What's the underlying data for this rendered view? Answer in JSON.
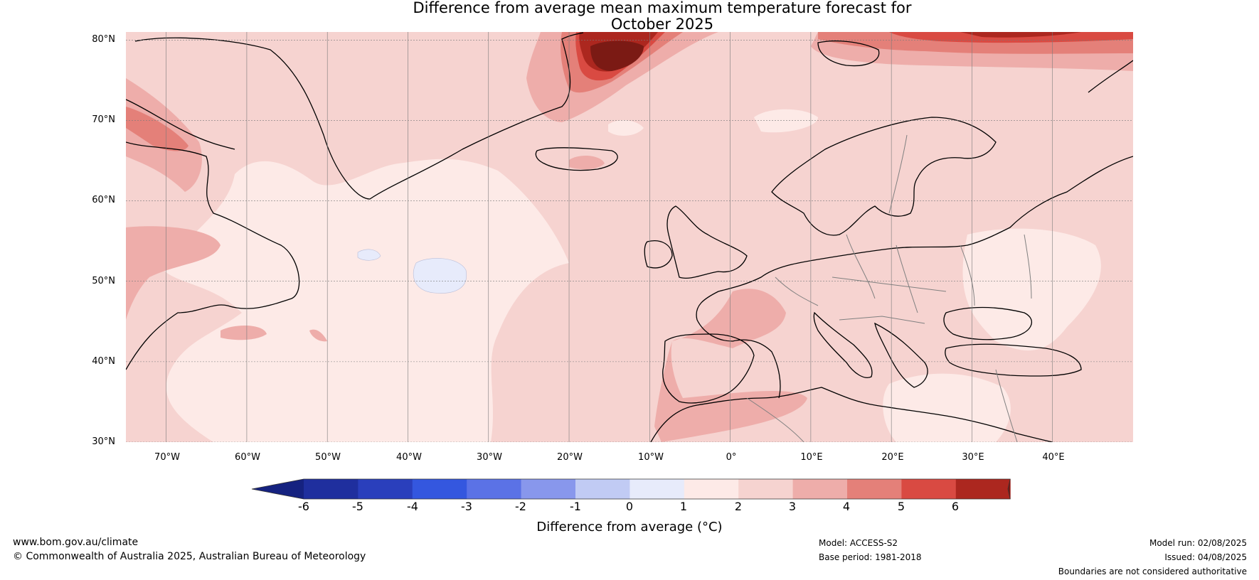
{
  "title": {
    "line1": "Difference from average mean maximum temperature forecast for",
    "line2": "October 2025"
  },
  "map": {
    "latitude_labels": [
      "80°N",
      "70°N",
      "60°N",
      "50°N",
      "40°N",
      "30°N"
    ],
    "longitude_labels": [
      "70°W",
      "60°W",
      "50°W",
      "40°W",
      "30°W",
      "20°W",
      "10°W",
      "0°",
      "10°E",
      "20°E",
      "30°E",
      "40°E"
    ],
    "extent": {
      "lon_min": -75,
      "lon_max": 50,
      "lat_min": 30,
      "lat_max": 81
    },
    "field_colors": {
      "0_to_1": "#fdeae7",
      "1_to_2": "#f6d3d0",
      "2_to_3": "#eeadaa",
      "3_to_4": "#e48079",
      "4_to_5": "#d94a42",
      "5_to_6": "#ac271f",
      "above_6": "#7b1a14",
      "minus1_to_0": "#e7ebfb"
    }
  },
  "colorbar": {
    "ticks": [
      "-6",
      "-5",
      "-4",
      "-3",
      "-2",
      "-1",
      "0",
      "1",
      "2",
      "3",
      "4",
      "5",
      "6"
    ],
    "colors": [
      "#1f2f9e",
      "#2a3fbc",
      "#3457df",
      "#5b72e6",
      "#8897ec",
      "#c1cbf4",
      "#e7ebfb",
      "#fdeae7",
      "#f6d3d0",
      "#eeadaa",
      "#e48079",
      "#d94a42",
      "#ac271f"
    ],
    "low_extend_color": "#152280",
    "high_extend_color": "#7b1a14",
    "label": "Difference from average (°C)"
  },
  "footer": {
    "website": "www.bom.gov.au/climate",
    "copyright": "© Commonwealth of Australia 2025, Australian Bureau of Meteorology",
    "model": "Model: ACCESS-S2",
    "base_period": "Base period: 1981-2018",
    "model_run": "Model run: 02/08/2025",
    "issued": "Issued: 04/08/2025",
    "disclaimer": "Boundaries are not considered authoritative"
  }
}
